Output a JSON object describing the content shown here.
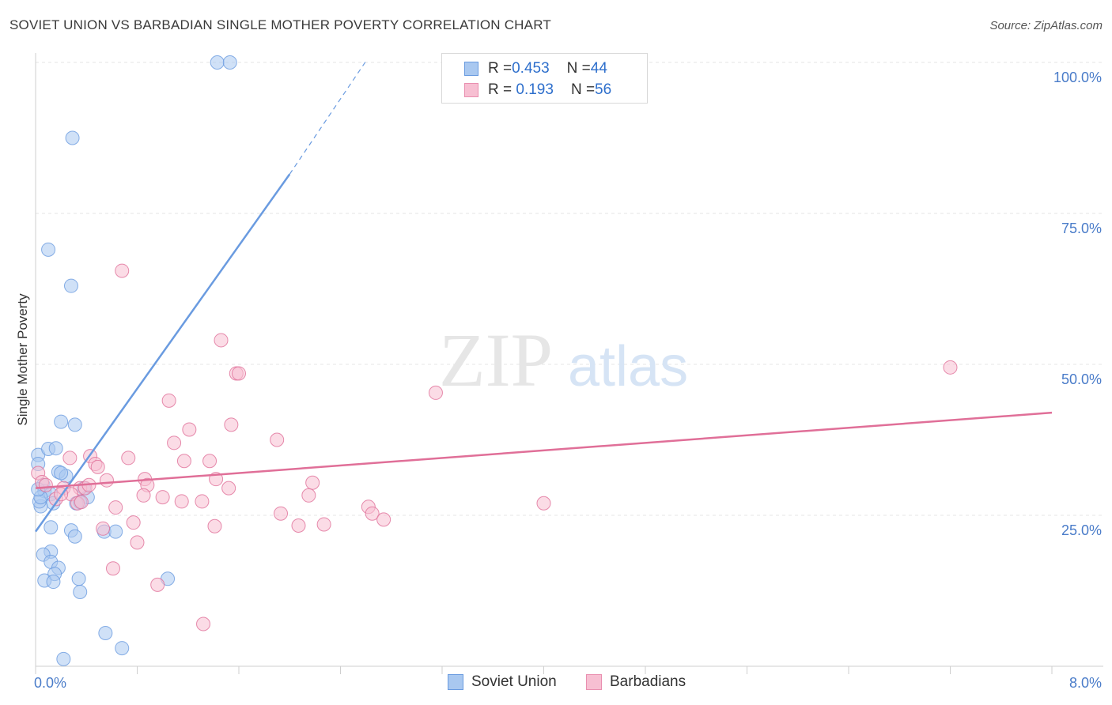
{
  "title": "SOVIET UNION VS BARBADIAN SINGLE MOTHER POVERTY CORRELATION CHART",
  "source": "Source: ZipAtlas.com",
  "watermark": {
    "zip": "ZIP",
    "atlas": "atlas"
  },
  "legend": {
    "rows": [
      {
        "r_label": "R = ",
        "r_value": "0.453",
        "n_label": "N = ",
        "n_value": "44",
        "color": "#a9c8f0",
        "border": "#6a9be0"
      },
      {
        "r_label": "R = ",
        "r_value": " 0.193",
        "n_label": "N = ",
        "n_value": "56",
        "color": "#f7bfd2",
        "border": "#e98fb0"
      }
    ],
    "series": [
      "Soviet Union",
      "Barbadians"
    ]
  },
  "chart_data": {
    "type": "scatter",
    "title": "SOVIET UNION VS BARBADIAN SINGLE MOTHER POVERTY CORRELATION CHART",
    "xlabel": "",
    "ylabel": "Single Mother Poverty",
    "xlim": [
      0,
      8
    ],
    "ylim": [
      0,
      100
    ],
    "x_tick_labels": [
      "0.0%",
      "8.0%"
    ],
    "y_tick_labels": [
      "100.0%",
      "75.0%",
      "50.0%",
      "25.0%"
    ],
    "y_tick_values": [
      100,
      75,
      50,
      25
    ],
    "grid": true,
    "legend_position": "top-center",
    "series": [
      {
        "name": "Soviet Union",
        "color": "#6a9be0",
        "fill": "#a9c8f0",
        "trend": {
          "x0": 0.0,
          "y0": 22.3,
          "x1": 2.0,
          "y1": 81.5,
          "dash_to_x": 2.6,
          "dash_to_y": 100.2
        },
        "points": [
          [
            1.43,
            100
          ],
          [
            1.53,
            100
          ],
          [
            0.29,
            87.5
          ],
          [
            0.1,
            69
          ],
          [
            0.28,
            63
          ],
          [
            0.2,
            40.5
          ],
          [
            0.31,
            40
          ],
          [
            0.02,
            35
          ],
          [
            0.1,
            36
          ],
          [
            0.16,
            36.1
          ],
          [
            0.02,
            33.5
          ],
          [
            0.06,
            30
          ],
          [
            0.18,
            32.2
          ],
          [
            0.24,
            31.5
          ],
          [
            0.2,
            32
          ],
          [
            0.07,
            29
          ],
          [
            0.12,
            28.5
          ],
          [
            0.14,
            27
          ],
          [
            0.04,
            26.5
          ],
          [
            0.03,
            27.3
          ],
          [
            0.38,
            29.5
          ],
          [
            0.41,
            28
          ],
          [
            0.32,
            27
          ],
          [
            0.35,
            27.2
          ],
          [
            0.12,
            23
          ],
          [
            0.28,
            22.5
          ],
          [
            0.31,
            21.5
          ],
          [
            0.54,
            22.3
          ],
          [
            0.63,
            22.3
          ],
          [
            0.12,
            19
          ],
          [
            0.06,
            18.5
          ],
          [
            0.12,
            17.3
          ],
          [
            0.18,
            16.3
          ],
          [
            0.15,
            15.3
          ],
          [
            0.07,
            14.2
          ],
          [
            0.14,
            14
          ],
          [
            0.34,
            14.5
          ],
          [
            1.04,
            14.5
          ],
          [
            0.35,
            12.3
          ],
          [
            0.55,
            5.5
          ],
          [
            0.68,
            3
          ],
          [
            0.22,
            1.2
          ],
          [
            0.04,
            28
          ],
          [
            0.02,
            29.3
          ]
        ]
      },
      {
        "name": "Barbadians",
        "color": "#e06f98",
        "fill": "#f7bfd2",
        "trend": {
          "x0": 0.0,
          "y0": 29.5,
          "x1": 8.0,
          "y1": 42
        },
        "points": [
          [
            0.68,
            65.5
          ],
          [
            1.46,
            54
          ],
          [
            1.58,
            48.5
          ],
          [
            1.6,
            48.5
          ],
          [
            7.2,
            49.5
          ],
          [
            3.15,
            45.3
          ],
          [
            1.05,
            44
          ],
          [
            1.21,
            39.2
          ],
          [
            1.54,
            40
          ],
          [
            1.9,
            37.5
          ],
          [
            1.09,
            37
          ],
          [
            0.73,
            34.5
          ],
          [
            0.27,
            34.5
          ],
          [
            0.43,
            34.8
          ],
          [
            1.17,
            34
          ],
          [
            1.37,
            34
          ],
          [
            0.47,
            33.5
          ],
          [
            0.49,
            33
          ],
          [
            0.02,
            32
          ],
          [
            0.05,
            30.5
          ],
          [
            0.56,
            30.8
          ],
          [
            0.86,
            31
          ],
          [
            1.42,
            31
          ],
          [
            0.08,
            30
          ],
          [
            0.22,
            29.5
          ],
          [
            0.88,
            30
          ],
          [
            0.35,
            29.5
          ],
          [
            0.39,
            29.5
          ],
          [
            2.18,
            30.4
          ],
          [
            0.28,
            28.5
          ],
          [
            0.85,
            28.3
          ],
          [
            1.0,
            28
          ],
          [
            1.52,
            29.5
          ],
          [
            2.15,
            28.3
          ],
          [
            0.16,
            27.7
          ],
          [
            0.33,
            27
          ],
          [
            0.36,
            27.2
          ],
          [
            1.15,
            27.3
          ],
          [
            1.31,
            27.3
          ],
          [
            0.63,
            26.3
          ],
          [
            2.62,
            26.4
          ],
          [
            4.0,
            27
          ],
          [
            1.93,
            25.3
          ],
          [
            2.65,
            25.3
          ],
          [
            2.74,
            24.3
          ],
          [
            0.77,
            23.8
          ],
          [
            1.41,
            23.2
          ],
          [
            2.07,
            23.3
          ],
          [
            2.27,
            23.5
          ],
          [
            0.53,
            22.8
          ],
          [
            0.8,
            20.5
          ],
          [
            0.61,
            16.2
          ],
          [
            0.96,
            13.5
          ],
          [
            1.32,
            7
          ],
          [
            0.2,
            28.5
          ],
          [
            0.42,
            30
          ]
        ]
      }
    ]
  }
}
